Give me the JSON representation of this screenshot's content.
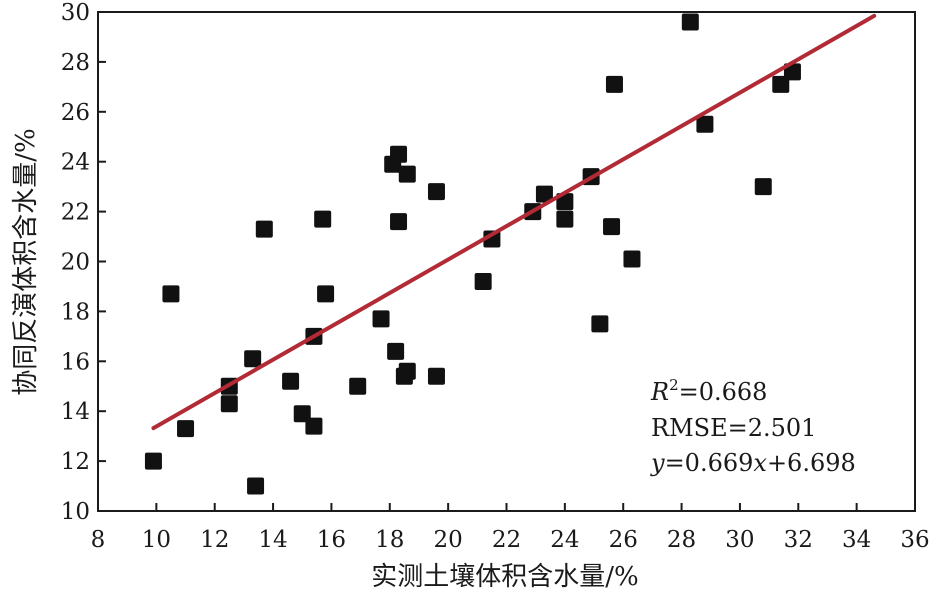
{
  "chart_data": {
    "type": "scatter",
    "xlabel": "实测土壤体积含水量/%",
    "ylabel": "协同反演体积含水量/%",
    "xlim": [
      8,
      36
    ],
    "ylim": [
      10,
      30
    ],
    "xticks": [
      8,
      10,
      12,
      14,
      16,
      18,
      20,
      22,
      24,
      26,
      28,
      30,
      32,
      34,
      36
    ],
    "yticks": [
      10,
      12,
      14,
      16,
      18,
      20,
      22,
      24,
      26,
      28,
      30
    ],
    "grid": false,
    "colors": {
      "points": "#111111",
      "fit_line": "#b22a35"
    },
    "series": [
      {
        "values": [
          [
            9.9,
            12.0
          ],
          [
            10.5,
            18.7
          ],
          [
            11.0,
            13.3
          ],
          [
            12.5,
            15.0
          ],
          [
            12.5,
            14.3
          ],
          [
            13.3,
            16.1
          ],
          [
            13.4,
            11.0
          ],
          [
            13.7,
            21.3
          ],
          [
            14.6,
            15.2
          ],
          [
            15.0,
            13.9
          ],
          [
            15.4,
            13.4
          ],
          [
            15.4,
            17.0
          ],
          [
            15.7,
            21.7
          ],
          [
            15.8,
            18.7
          ],
          [
            16.9,
            15.0
          ],
          [
            17.7,
            17.7
          ],
          [
            18.1,
            23.9
          ],
          [
            18.2,
            16.4
          ],
          [
            18.3,
            24.3
          ],
          [
            18.3,
            21.6
          ],
          [
            18.5,
            15.4
          ],
          [
            18.6,
            23.5
          ],
          [
            18.6,
            15.6
          ],
          [
            19.6,
            22.8
          ],
          [
            19.6,
            15.4
          ],
          [
            21.2,
            19.2
          ],
          [
            21.5,
            20.9
          ],
          [
            22.9,
            22.0
          ],
          [
            23.3,
            22.7
          ],
          [
            24.0,
            22.4
          ],
          [
            24.0,
            21.7
          ],
          [
            24.9,
            23.4
          ],
          [
            25.2,
            17.5
          ],
          [
            25.6,
            21.4
          ],
          [
            25.7,
            27.1
          ],
          [
            26.3,
            20.1
          ],
          [
            28.3,
            29.6
          ],
          [
            28.8,
            25.5
          ],
          [
            30.8,
            23.0
          ],
          [
            31.4,
            27.1
          ],
          [
            31.8,
            27.6
          ]
        ]
      }
    ],
    "fit_line": {
      "slope": 0.669,
      "intercept": 6.698,
      "x_range": [
        9.9,
        34.6
      ]
    },
    "annotations": {
      "r2_symbol": "R",
      "r2_sup": "2",
      "r2_value": "=0.668",
      "rmse": "RMSE=2.501",
      "eq_y": "y",
      "eq_mid": "=0.669",
      "eq_x": "x",
      "eq_end": "+6.698"
    }
  }
}
